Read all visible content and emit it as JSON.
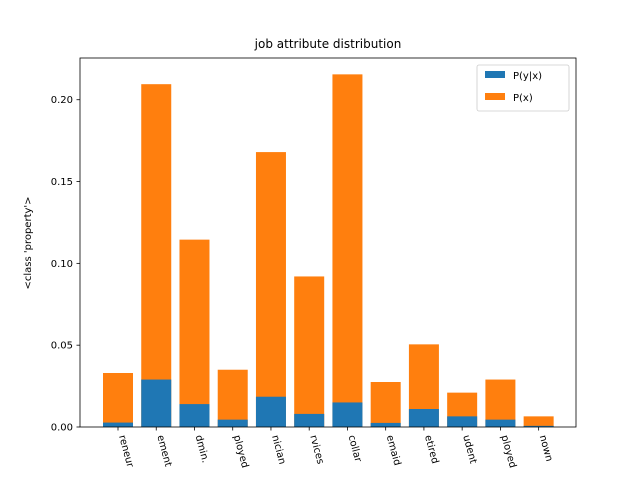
{
  "chart_data": {
    "type": "bar",
    "stacked": true,
    "title": "job attribute distribution",
    "xlabel": "",
    "ylabel": "<class 'property'>",
    "categories": [
      "entrepreneur",
      "management",
      "admin.",
      "unemployed",
      "technician",
      "services",
      "blue-collar",
      "housemaid",
      "retired",
      "student",
      "self-employed",
      "unknown"
    ],
    "category_labels_visible": [
      "reneur",
      "ement",
      "dmin.",
      "ployed",
      "nician",
      "rvices",
      "collar",
      "emaid",
      "etired",
      "udent",
      "ployed",
      "nown"
    ],
    "series": [
      {
        "name": "P(y|x)",
        "color": "#1f77b4",
        "values": [
          0.0027,
          0.029,
          0.014,
          0.0045,
          0.0185,
          0.008,
          0.015,
          0.0025,
          0.011,
          0.0065,
          0.0045,
          0.0007
        ]
      },
      {
        "name": "P(x)",
        "color": "#ff7f0e",
        "values": [
          0.033,
          0.2095,
          0.1145,
          0.035,
          0.168,
          0.092,
          0.2155,
          0.0275,
          0.0505,
          0.021,
          0.029,
          0.0065
        ]
      }
    ],
    "ylim": [
      0,
      0.2255
    ],
    "yticks": [
      "0.00",
      "0.05",
      "0.10",
      "0.15",
      "0.20"
    ],
    "ytick_values": [
      0,
      0.05,
      0.1,
      0.15,
      0.2
    ],
    "legend": "top-right",
    "grid": false
  }
}
